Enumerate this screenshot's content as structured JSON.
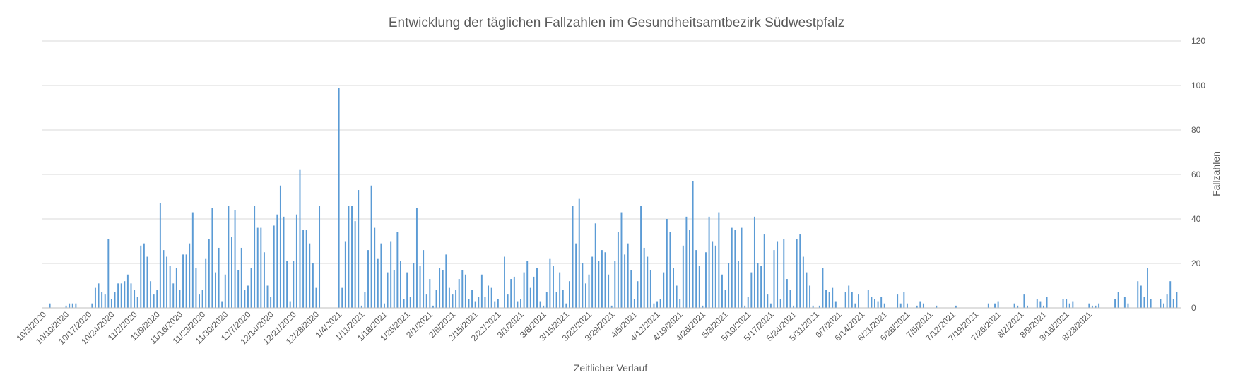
{
  "chart_data": {
    "type": "bar",
    "title": "Entwicklung der täglichen Fallzahlen im Gesundheitsamtbezirk Südwestpfalz",
    "xlabel": "Zeitlicher Verlauf",
    "ylabel": "Fallzahlen",
    "ylim": [
      0,
      120
    ],
    "y_ticks": [
      0,
      20,
      40,
      60,
      80,
      100,
      120
    ],
    "y_axis_position": "right",
    "grid": true,
    "legend": "none",
    "bar_color": "#5b9bd5",
    "start_date": "10/3/2020",
    "x_tick_labels": [
      "10/3/2020",
      "10/10/2020",
      "10/17/2020",
      "10/24/2020",
      "11/2/2020",
      "11/9/2020",
      "11/16/2020",
      "11/23/2020",
      "11/30/2020",
      "12/7/2020",
      "12/14/2020",
      "12/21/2020",
      "12/28/2020",
      "1/4/2021",
      "1/11/2021",
      "1/18/2021",
      "1/25/2021",
      "2/1/2021",
      "2/8/2021",
      "2/15/2021",
      "2/22/2021",
      "3/1/2021",
      "3/8/2021",
      "3/15/2021",
      "3/22/2021",
      "3/29/2021",
      "4/5/2021",
      "4/12/2021",
      "4/19/2021",
      "4/26/2021",
      "5/3/2021",
      "5/10/2021",
      "5/17/2021",
      "5/24/2021",
      "5/31/2021",
      "6/7/2021",
      "6/14/2021",
      "6/21/2021",
      "6/28/2021",
      "7/5/2021",
      "7/12/2021",
      "7/19/2021",
      "7/26/2021",
      "8/2/2021",
      "8/9/2021",
      "8/16/2021",
      "8/23/2021"
    ],
    "values": [
      0,
      2,
      0,
      0,
      0,
      0,
      1,
      2,
      2,
      2,
      0,
      0,
      0,
      0,
      2,
      9,
      11,
      7,
      6,
      31,
      4,
      7,
      11,
      11,
      12,
      15,
      11,
      8,
      5,
      28,
      29,
      23,
      12,
      6,
      8,
      47,
      26,
      23,
      19,
      11,
      18,
      8,
      24,
      24,
      29,
      43,
      18,
      6,
      8,
      22,
      31,
      45,
      16,
      27,
      3,
      15,
      46,
      32,
      44,
      17,
      27,
      8,
      10,
      18,
      46,
      36,
      36,
      25,
      10,
      5,
      37,
      42,
      55,
      41,
      21,
      3,
      21,
      42,
      62,
      35,
      35,
      29,
      20,
      9,
      46,
      0,
      0,
      0,
      0,
      0,
      99,
      9,
      30,
      46,
      46,
      39,
      53,
      1,
      7,
      26,
      55,
      36,
      22,
      29,
      2,
      16,
      30,
      17,
      34,
      21,
      4,
      16,
      5,
      20,
      45,
      19,
      26,
      6,
      13,
      1,
      8,
      18,
      17,
      24,
      9,
      6,
      8,
      13,
      17,
      15,
      4,
      8,
      3,
      5,
      15,
      5,
      10,
      9,
      3,
      4,
      0,
      23,
      6,
      13,
      14,
      3,
      4,
      16,
      21,
      9,
      14,
      18,
      3,
      1,
      7,
      22,
      19,
      7,
      16,
      8,
      2,
      12,
      46,
      29,
      49,
      20,
      11,
      15,
      23,
      38,
      21,
      26,
      25,
      15,
      1,
      21,
      34,
      43,
      24,
      29,
      17,
      4,
      12,
      46,
      27,
      23,
      17,
      2,
      3,
      4,
      16,
      40,
      34,
      18,
      10,
      4,
      28,
      41,
      35,
      57,
      26,
      19,
      1,
      25,
      41,
      30,
      28,
      43,
      15,
      8,
      20,
      36,
      35,
      21,
      36,
      1,
      5,
      16,
      41,
      20,
      19,
      33,
      6,
      2,
      26,
      30,
      4,
      31,
      13,
      8,
      1,
      31,
      33,
      23,
      16,
      10,
      1,
      0,
      1,
      18,
      8,
      7,
      9,
      3,
      0,
      0,
      7,
      10,
      7,
      2,
      6,
      0,
      0,
      8,
      5,
      4,
      3,
      5,
      2,
      0,
      0,
      0,
      6,
      2,
      7,
      2,
      0,
      0,
      1,
      3,
      2,
      0,
      0,
      0,
      1,
      0,
      0,
      0,
      0,
      0,
      1,
      0,
      0,
      0,
      0,
      0,
      0,
      0,
      0,
      0,
      2,
      0,
      2,
      3,
      0,
      0,
      0,
      0,
      2,
      1,
      0,
      6,
      1,
      0,
      0,
      4,
      3,
      1,
      5,
      0,
      0,
      0,
      0,
      4,
      4,
      2,
      3,
      0,
      0,
      0,
      0,
      2,
      1,
      1,
      2,
      0,
      0,
      0,
      0,
      4,
      7,
      0,
      5,
      2,
      0,
      0,
      12,
      10,
      5,
      18,
      4,
      0,
      0,
      4,
      2,
      6,
      12,
      4,
      7
    ]
  }
}
